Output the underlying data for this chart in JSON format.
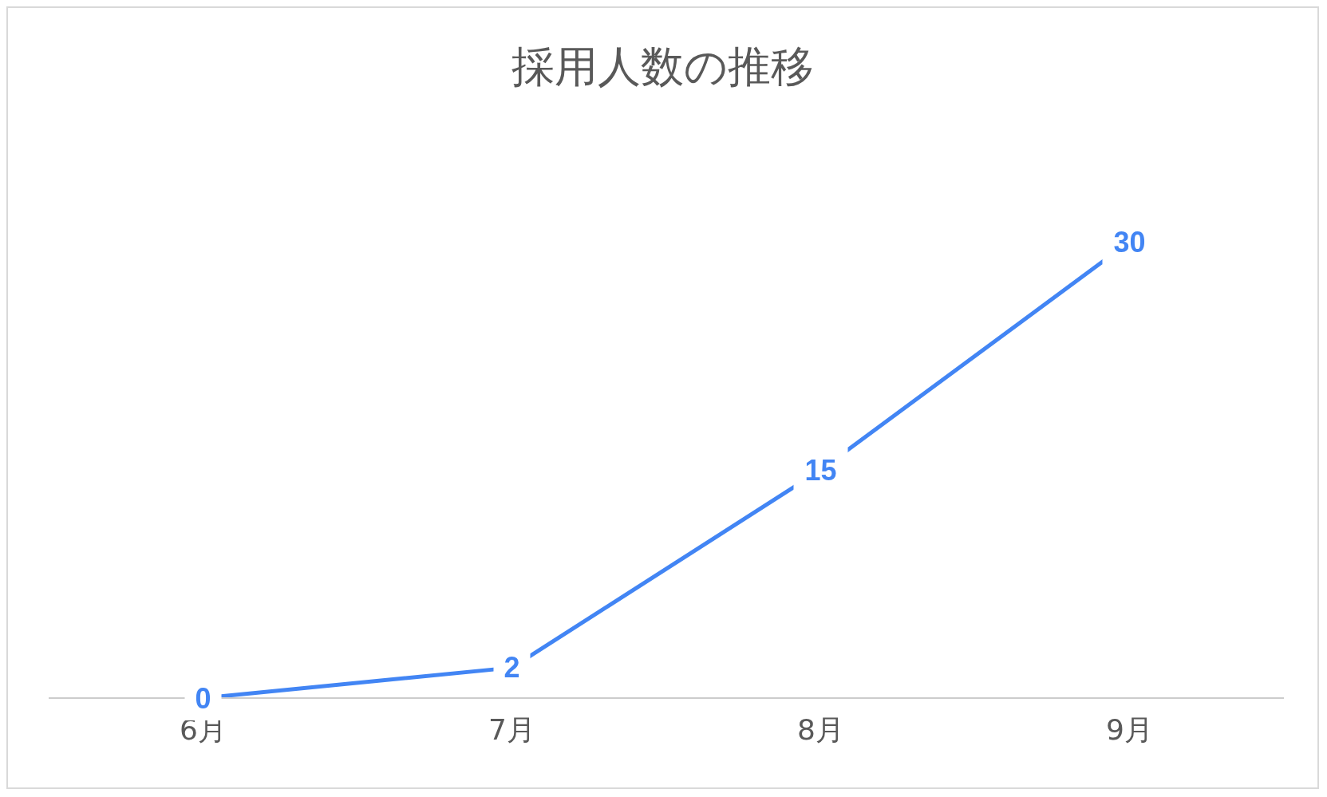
{
  "chart_data": {
    "type": "line",
    "title": "採用人数の推移",
    "categories": [
      "6月",
      "7月",
      "8月",
      "9月"
    ],
    "series": [
      {
        "color": "#4285f4",
        "values": [
          0,
          2,
          15,
          30
        ]
      }
    ],
    "data_labels": true,
    "tick_labels": "x",
    "line_style": "solid"
  }
}
